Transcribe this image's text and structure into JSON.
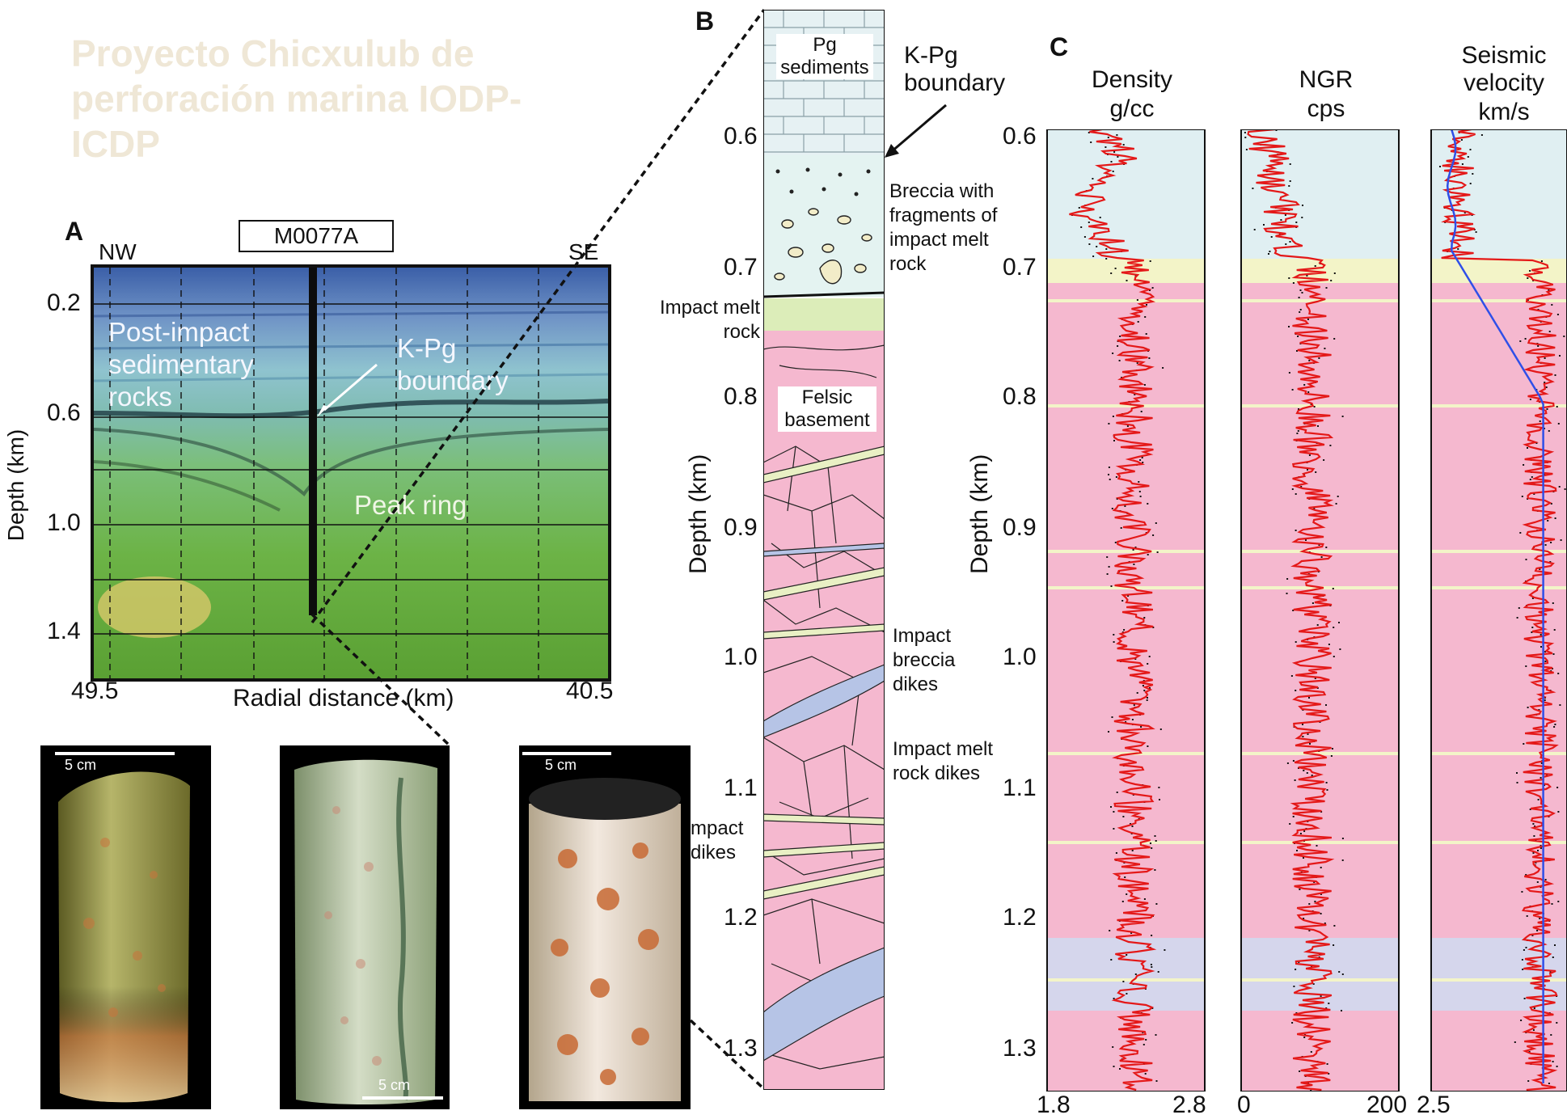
{
  "watermark": {
    "text": "Proyecto Chicxulub de perforación marina IODP-ICDP"
  },
  "panel_a": {
    "letter": "A",
    "well_label": "M0077A",
    "left_dir": "NW",
    "right_dir": "SE",
    "y_label": "Depth (km)",
    "y_ticks": [
      "0.2",
      "0.6",
      "1.0",
      "1.4"
    ],
    "x_left": "49.5",
    "x_right": "40.5",
    "x_label": "Radial distance (km)",
    "annotations": {
      "post_impact": "Post-impact sedimentary rocks",
      "kpg": "K-Pg boundary",
      "peak_ring": "Peak ring"
    }
  },
  "photos": {
    "scale_left": "5 cm",
    "scale_middle": "5 cm",
    "scale_right": "5 cm"
  },
  "panel_b": {
    "letter": "B",
    "y_label": "Depth (km)",
    "y_ticks": [
      "0.6",
      "0.7",
      "0.8",
      "0.9",
      "1.0",
      "1.1",
      "1.2",
      "1.3"
    ],
    "labels": {
      "pg": "Pg sediments",
      "kpg": "K-Pg boundary",
      "breccia": "Breccia with fragments of impact melt rock",
      "impact_melt": "Impact melt rock",
      "felsic": "Felsic basement",
      "breccia_dikes": "Impact breccia dikes",
      "melt_dikes": "Impact melt rock dikes",
      "impact_dikes": "mpact dikes"
    }
  },
  "panel_c": {
    "letter": "C",
    "y_label": "Depth (km)",
    "y_ticks": [
      "0.6",
      "0.7",
      "0.8",
      "0.9",
      "1.0",
      "1.1",
      "1.2",
      "1.3"
    ],
    "tracks": [
      {
        "title": "Density",
        "unit": "g/cc",
        "x_min": "1.8",
        "x_max": "2.8"
      },
      {
        "title": "NGR",
        "unit": "cps",
        "x_min": "0",
        "x_max": "200"
      },
      {
        "title": "Seismic velocity",
        "unit": "km/s",
        "x_min": "2.5",
        "x_max": ""
      }
    ]
  },
  "colors": {
    "sediment_band": "#e0eff2",
    "melt_band": "#f3f4c8",
    "basement_band": "#f5b8cf",
    "breccia_band": "#d5d6ec",
    "log_red": "#e41818",
    "velocity_blue": "#2f4fe8"
  }
}
